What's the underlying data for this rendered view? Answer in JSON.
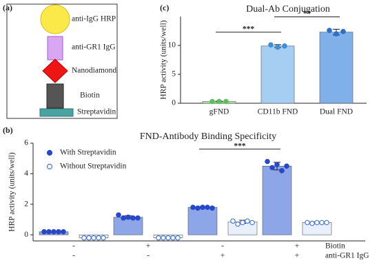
{
  "diagram": {
    "label": "(a)",
    "items": [
      {
        "label": "anti-IgG HRP"
      },
      {
        "label": "anti-GR1 IgG"
      },
      {
        "label": "Nanodiamond"
      },
      {
        "label": "Biotin"
      },
      {
        "label": "Streptavidin"
      }
    ]
  },
  "chart_data": [
    {
      "type": "bar",
      "panel_label": "(c)",
      "title": "Dual-Ab Conjugation",
      "ylabel": "HRP activity (units/well)",
      "categories": [
        "gFND",
        "CD11b FND",
        "Dual FND"
      ],
      "series": [
        {
          "values": [
            0.3,
            9.9,
            12.3
          ],
          "errors": [
            0.05,
            0.25,
            0.5
          ],
          "points": [
            [
              0.3,
              0.3,
              0.3
            ],
            [
              10.1,
              9.7,
              9.9
            ],
            [
              12.6,
              12.0,
              12.4
            ]
          ],
          "colors": [
            "#b9e8b2",
            "#a6cdf2",
            "#7fb0ea"
          ],
          "point_colors": [
            "#5cbf5a",
            "#3d8fd9",
            "#2f6fc8"
          ],
          "marker": "filled"
        }
      ],
      "ylim": [
        0,
        15
      ],
      "yticks": [
        0,
        5,
        10
      ],
      "annotations": [
        {
          "text": "***",
          "between": [
            0,
            1
          ]
        },
        {
          "text": "**",
          "between": [
            1,
            2
          ]
        }
      ]
    },
    {
      "type": "bar",
      "panel_label": "(b)",
      "title": "FND-Antibody Binding Specificity",
      "ylabel": "HRP activity (units/well)",
      "series": [
        {
          "name": "With Streptavidin",
          "color": "#8da6e8",
          "point_color": "#2748c8",
          "marker": "filled",
          "values": [
            0.2,
            1.15,
            1.8,
            4.5
          ],
          "errors": [
            0.03,
            0.1,
            0.05,
            0.25
          ],
          "points": [
            [
              0.2,
              0.2,
              0.2,
              0.2,
              0.2
            ],
            [
              1.3,
              1.1,
              1.15,
              1.1,
              1.1
            ],
            [
              1.8,
              1.75,
              1.8,
              1.8,
              1.75
            ],
            [
              4.8,
              4.4,
              4.6,
              4.2,
              4.5
            ]
          ]
        },
        {
          "name": "Without Streptavidin",
          "color": "#e9f0fb",
          "point_color": "#4a78d0",
          "marker": "open",
          "values": [
            -0.2,
            -0.2,
            0.85,
            0.8
          ],
          "errors": [
            0.02,
            0.02,
            0.1,
            0.05
          ],
          "points": [
            [
              -0.2,
              -0.2,
              -0.2,
              -0.2,
              -0.2
            ],
            [
              -0.2,
              -0.2,
              -0.2,
              -0.2,
              -0.2
            ],
            [
              0.9,
              0.7,
              0.8,
              0.9,
              0.8
            ],
            [
              0.8,
              0.75,
              0.8,
              0.8,
              0.8
            ]
          ]
        }
      ],
      "conditions": [
        {
          "name": "Biotin",
          "values": [
            "-",
            "+",
            "-",
            "+"
          ]
        },
        {
          "name": "anti-GR1 IgG",
          "values": [
            "-",
            "-",
            "+",
            "+"
          ]
        }
      ],
      "ylim": [
        -0.4,
        6
      ],
      "yticks": [
        0,
        2,
        4,
        6
      ],
      "legend": "top-left",
      "annotations": [
        {
          "text": "***",
          "series": 0,
          "between": [
            2,
            3
          ]
        }
      ]
    }
  ]
}
